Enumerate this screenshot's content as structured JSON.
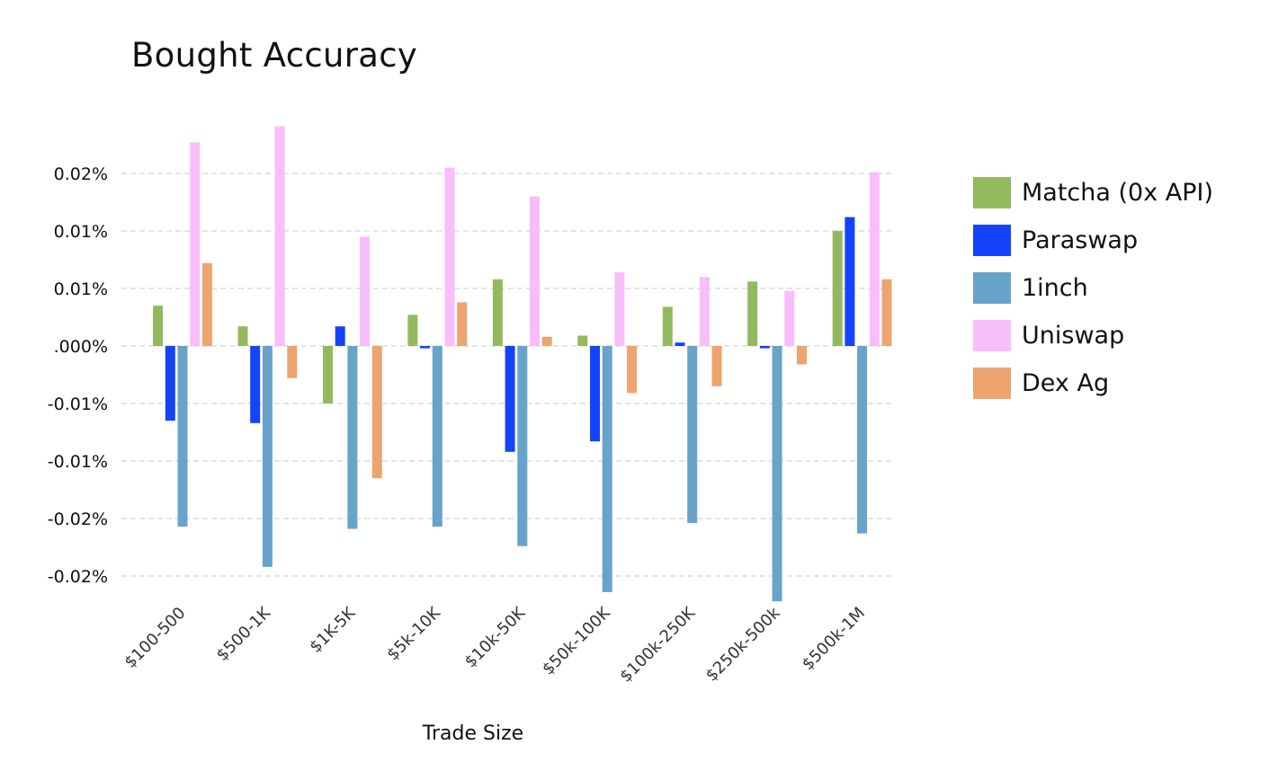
{
  "chart_data": {
    "type": "bar",
    "title": "Bought Accuracy",
    "xlabel": "Trade Size",
    "ylabel": "",
    "ylim": [
      -0.0222,
      0.0192
    ],
    "yticks": [
      0.015,
      0.01,
      0.005,
      0.0,
      -0.005,
      -0.01,
      -0.015,
      -0.02
    ],
    "ytick_labels": [
      "0.02%",
      "0.01%",
      "0.01%",
      ".000%",
      "-0.01%",
      "-0.01%",
      "-0.02%",
      "-0.02%"
    ],
    "grid": true,
    "legend_position": "right",
    "categories": [
      "$100-500",
      "$500-1K",
      "$1K-5K",
      "$5k-10K",
      "$10k-50K",
      "$50k-100K",
      "$100k-250K",
      "$250k-500k",
      "$500k-1M"
    ],
    "series": [
      {
        "name": "Matcha (0x API)",
        "color": "#93b95e",
        "values": [
          0.0035,
          0.0017,
          -0.005,
          0.0027,
          0.0058,
          0.0009,
          0.0034,
          0.0056,
          0.01
        ]
      },
      {
        "name": "Paraswap",
        "color": "#1443fa",
        "values": [
          -0.0065,
          -0.0067,
          0.0017,
          -0.0002,
          -0.0092,
          -0.0083,
          0.0003,
          -0.0002,
          0.0112
        ]
      },
      {
        "name": "1inch",
        "color": "#68a3c9",
        "values": [
          -0.0157,
          -0.0192,
          -0.0159,
          -0.0157,
          -0.0174,
          -0.0214,
          -0.0154,
          -0.0222,
          -0.0163
        ]
      },
      {
        "name": "Uniswap",
        "color": "#f8befb",
        "values": [
          0.0177,
          0.0191,
          0.0095,
          0.0155,
          0.013,
          0.0064,
          0.006,
          0.0048,
          0.0151
        ]
      },
      {
        "name": "Dex Ag",
        "color": "#eda46f",
        "values": [
          0.0072,
          -0.0028,
          -0.0115,
          0.0038,
          0.0008,
          -0.0041,
          -0.0035,
          -0.0016,
          0.0058
        ]
      }
    ]
  }
}
